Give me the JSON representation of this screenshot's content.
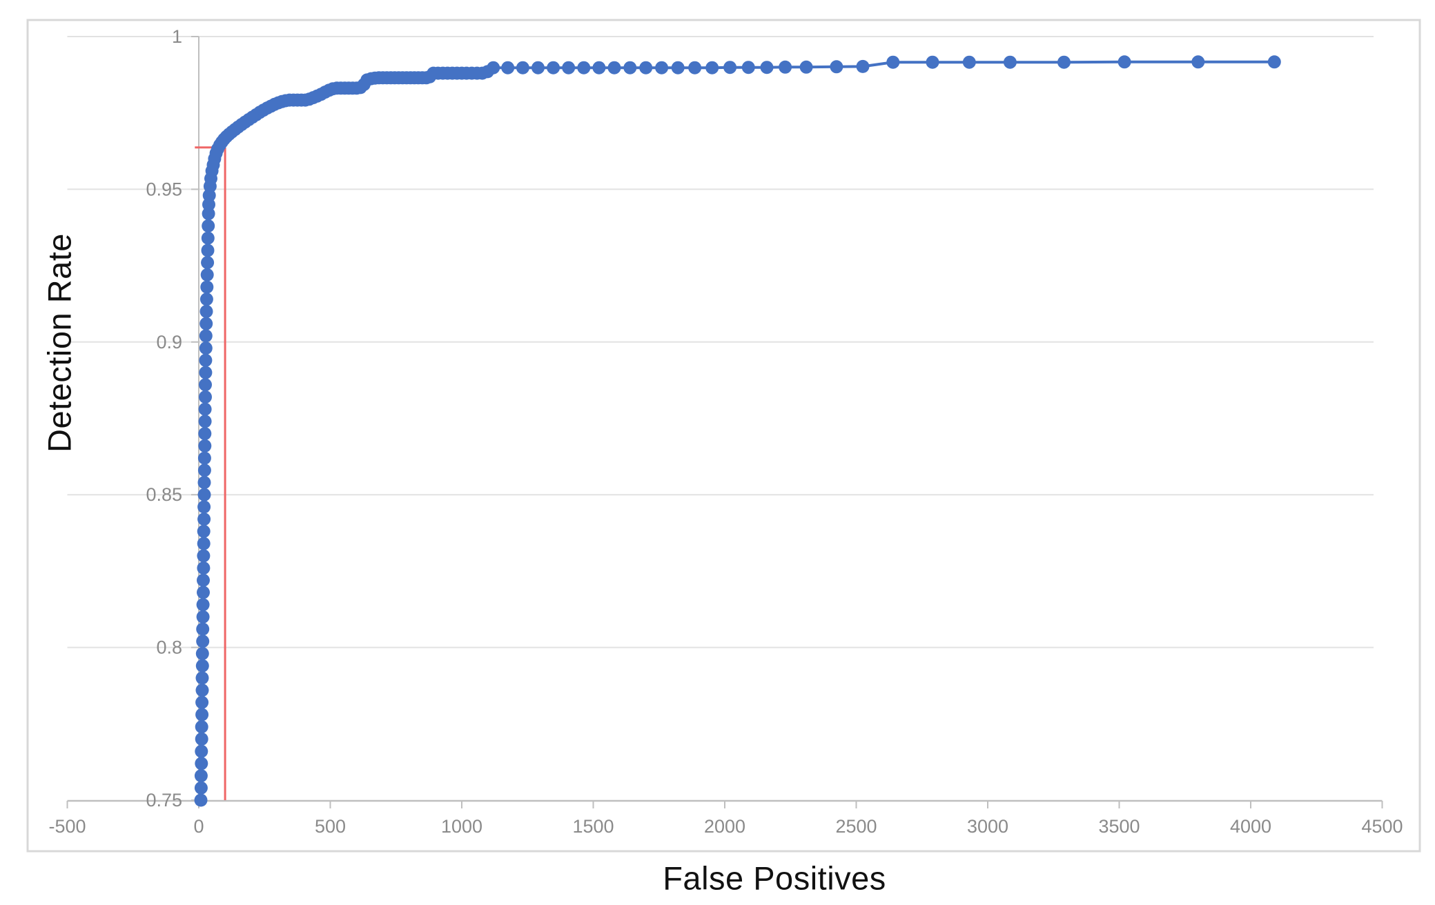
{
  "chart_data": {
    "type": "scatter",
    "title": "",
    "xlabel": "False Positives",
    "ylabel": "Detection Rate",
    "xlim": [
      -500,
      4500
    ],
    "ylim": [
      0.75,
      1.0
    ],
    "grid": "horizontal",
    "legend": "none",
    "x_ticks": [
      -500,
      0,
      500,
      1000,
      1500,
      2000,
      2500,
      3000,
      3500,
      4000,
      4500
    ],
    "x_tick_labels": [
      "-500",
      "0",
      "500",
      "1000",
      "1500",
      "2000",
      "2500",
      "3000",
      "3500",
      "4000",
      "4500"
    ],
    "y_ticks": [
      0.75,
      0.8,
      0.85,
      0.9,
      0.95,
      1
    ],
    "y_tick_labels": [
      "0.75",
      "0.8",
      "0.85",
      "0.9",
      "0.95",
      "1"
    ],
    "colors": {
      "series": "#4472c4",
      "gridline": "#e2e2e2",
      "axis": "#bfbfbf",
      "tick_label": "#8a8a8a",
      "axis_title": "#111111",
      "figure_border": "#d8d8d8",
      "threshold": "#ef6666",
      "background": "#ffffff"
    },
    "annotations": [
      {
        "type": "threshold-crosshair",
        "x": 100,
        "y": 0.9637,
        "x_start": -15,
        "y_bottom": 0.75
      }
    ],
    "series": [
      {
        "name": "roc-curve",
        "marker": "circle",
        "points": [
          [
            8,
            0.75
          ],
          [
            9,
            0.754
          ],
          [
            9,
            0.758
          ],
          [
            10,
            0.762
          ],
          [
            10,
            0.766
          ],
          [
            11,
            0.77
          ],
          [
            11,
            0.774
          ],
          [
            12,
            0.778
          ],
          [
            12,
            0.782
          ],
          [
            13,
            0.786
          ],
          [
            13,
            0.79
          ],
          [
            14,
            0.794
          ],
          [
            14,
            0.798
          ],
          [
            15,
            0.802
          ],
          [
            15,
            0.806
          ],
          [
            16,
            0.81
          ],
          [
            16,
            0.814
          ],
          [
            17,
            0.818
          ],
          [
            17,
            0.822
          ],
          [
            18,
            0.826
          ],
          [
            18,
            0.83
          ],
          [
            19,
            0.834
          ],
          [
            19,
            0.838
          ],
          [
            20,
            0.842
          ],
          [
            20,
            0.846
          ],
          [
            21,
            0.85
          ],
          [
            21,
            0.854
          ],
          [
            22,
            0.858
          ],
          [
            22,
            0.862
          ],
          [
            23,
            0.866
          ],
          [
            23,
            0.87
          ],
          [
            24,
            0.874
          ],
          [
            24,
            0.878
          ],
          [
            25,
            0.882
          ],
          [
            25,
            0.886
          ],
          [
            26,
            0.89
          ],
          [
            26,
            0.894
          ],
          [
            27,
            0.898
          ],
          [
            27,
            0.902
          ],
          [
            28,
            0.906
          ],
          [
            29,
            0.91
          ],
          [
            30,
            0.914
          ],
          [
            31,
            0.918
          ],
          [
            32,
            0.922
          ],
          [
            33,
            0.926
          ],
          [
            34,
            0.93
          ],
          [
            35,
            0.934
          ],
          [
            36,
            0.938
          ],
          [
            37,
            0.942
          ],
          [
            38,
            0.945
          ],
          [
            40,
            0.948
          ],
          [
            43,
            0.951
          ],
          [
            46,
            0.9535
          ],
          [
            50,
            0.956
          ],
          [
            55,
            0.958
          ],
          [
            60,
            0.96
          ],
          [
            66,
            0.9618
          ],
          [
            72,
            0.9632
          ],
          [
            80,
            0.9645
          ],
          [
            88,
            0.9655
          ],
          [
            96,
            0.9664
          ],
          [
            105,
            0.9672
          ],
          [
            115,
            0.968
          ],
          [
            126,
            0.9688
          ],
          [
            138,
            0.9696
          ],
          [
            150,
            0.9704
          ],
          [
            163,
            0.9712
          ],
          [
            176,
            0.972
          ],
          [
            190,
            0.9728
          ],
          [
            204,
            0.9736
          ],
          [
            218,
            0.9744
          ],
          [
            232,
            0.9752
          ],
          [
            246,
            0.9759
          ],
          [
            260,
            0.9766
          ],
          [
            274,
            0.9772
          ],
          [
            288,
            0.9778
          ],
          [
            302,
            0.9783
          ],
          [
            316,
            0.9787
          ],
          [
            330,
            0.979
          ],
          [
            345,
            0.9792
          ],
          [
            360,
            0.9792
          ],
          [
            375,
            0.9792
          ],
          [
            390,
            0.9792
          ],
          [
            405,
            0.9792
          ],
          [
            420,
            0.9795
          ],
          [
            435,
            0.98
          ],
          [
            450,
            0.9805
          ],
          [
            465,
            0.9811
          ],
          [
            480,
            0.9818
          ],
          [
            495,
            0.9824
          ],
          [
            510,
            0.9829
          ],
          [
            525,
            0.9831
          ],
          [
            540,
            0.9831
          ],
          [
            555,
            0.9831
          ],
          [
            570,
            0.9831
          ],
          [
            585,
            0.9831
          ],
          [
            600,
            0.9831
          ],
          [
            615,
            0.9833
          ],
          [
            628,
            0.9843
          ],
          [
            640,
            0.9858
          ],
          [
            655,
            0.9862
          ],
          [
            670,
            0.9864
          ],
          [
            685,
            0.9865
          ],
          [
            700,
            0.9865
          ],
          [
            715,
            0.9865
          ],
          [
            730,
            0.9865
          ],
          [
            745,
            0.9865
          ],
          [
            760,
            0.9865
          ],
          [
            775,
            0.9865
          ],
          [
            790,
            0.9865
          ],
          [
            805,
            0.9865
          ],
          [
            820,
            0.9865
          ],
          [
            835,
            0.9865
          ],
          [
            850,
            0.9865
          ],
          [
            865,
            0.9865
          ],
          [
            878,
            0.9868
          ],
          [
            892,
            0.988
          ],
          [
            910,
            0.988
          ],
          [
            928,
            0.988
          ],
          [
            946,
            0.988
          ],
          [
            964,
            0.988
          ],
          [
            982,
            0.988
          ],
          [
            1000,
            0.988
          ],
          [
            1018,
            0.988
          ],
          [
            1038,
            0.988
          ],
          [
            1058,
            0.988
          ],
          [
            1078,
            0.988
          ],
          [
            1098,
            0.9885
          ],
          [
            1120,
            0.9898
          ],
          [
            1175,
            0.9898
          ],
          [
            1232,
            0.9898
          ],
          [
            1290,
            0.9898
          ],
          [
            1348,
            0.9898
          ],
          [
            1406,
            0.9898
          ],
          [
            1464,
            0.9898
          ],
          [
            1522,
            0.9898
          ],
          [
            1580,
            0.9898
          ],
          [
            1640,
            0.9898
          ],
          [
            1700,
            0.9898
          ],
          [
            1760,
            0.9898
          ],
          [
            1822,
            0.9898
          ],
          [
            1886,
            0.9898
          ],
          [
            1952,
            0.9898
          ],
          [
            2020,
            0.9899
          ],
          [
            2090,
            0.9899
          ],
          [
            2160,
            0.9899
          ],
          [
            2230,
            0.99
          ],
          [
            2310,
            0.99
          ],
          [
            2425,
            0.9901
          ],
          [
            2525,
            0.9902
          ],
          [
            2640,
            0.9916
          ],
          [
            2790,
            0.9916
          ],
          [
            2930,
            0.9916
          ],
          [
            3085,
            0.9916
          ],
          [
            3290,
            0.9916
          ],
          [
            3520,
            0.9917
          ],
          [
            3800,
            0.9917
          ],
          [
            4090,
            0.9917
          ]
        ]
      }
    ]
  }
}
